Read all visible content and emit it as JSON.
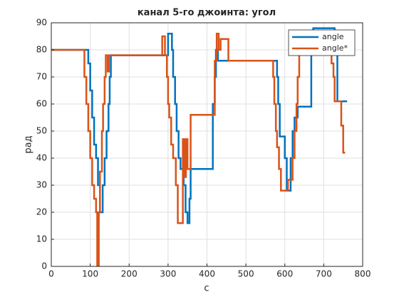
{
  "chart_data": {
    "type": "line",
    "title": "канал 5-го джоинта: угол",
    "xlabel": "c",
    "ylabel": "рад",
    "xlim": [
      0,
      800
    ],
    "xticks": [
      0,
      100,
      200,
      300,
      400,
      500,
      600,
      700,
      800
    ],
    "ylim": [
      0,
      90
    ],
    "yticks": [
      0,
      10,
      20,
      30,
      40,
      50,
      60,
      70,
      80,
      90
    ],
    "grid": true,
    "legend": "top-right",
    "series": [
      {
        "name": "angle",
        "color": "#0072bd",
        "x": [
          0,
          95,
          95,
          100,
          100,
          105,
          105,
          110,
          110,
          115,
          115,
          120,
          120,
          125,
          125,
          132,
          132,
          137,
          137,
          142,
          142,
          147,
          147,
          150,
          150,
          153,
          153,
          300,
          300,
          310,
          310,
          313,
          313,
          318,
          318,
          322,
          322,
          327,
          327,
          332,
          332,
          340,
          340,
          345,
          345,
          350,
          350,
          355,
          355,
          358,
          358,
          415,
          415,
          420,
          420,
          423,
          423,
          428,
          428,
          580,
          580,
          583,
          583,
          587,
          587,
          600,
          600,
          605,
          605,
          615,
          615,
          620,
          620,
          625,
          625,
          633,
          633,
          668,
          668,
          673,
          673,
          728,
          728,
          735,
          735,
          760
        ],
        "values": [
          80,
          80,
          75,
          75,
          65,
          65,
          55,
          55,
          45,
          45,
          40,
          40,
          30,
          30,
          20,
          20,
          30,
          30,
          40,
          40,
          50,
          50,
          60,
          60,
          70,
          70,
          78,
          78,
          86,
          86,
          80,
          80,
          70,
          70,
          60,
          60,
          50,
          50,
          40,
          40,
          36,
          36,
          30,
          30,
          20,
          20,
          16,
          16,
          25,
          25,
          36,
          36,
          60,
          60,
          70,
          70,
          80,
          80,
          76,
          76,
          70,
          70,
          60,
          60,
          48,
          48,
          40,
          40,
          28,
          28,
          40,
          40,
          50,
          50,
          55,
          55,
          59,
          59,
          80,
          80,
          88,
          88,
          80,
          80,
          61,
          61
        ]
      },
      {
        "name": "angle*",
        "color": "#d95319",
        "x": [
          0,
          85,
          85,
          90,
          90,
          95,
          95,
          100,
          100,
          105,
          105,
          110,
          110,
          115,
          115,
          118,
          118,
          122,
          122,
          125,
          125,
          130,
          130,
          133,
          133,
          137,
          137,
          140,
          140,
          145,
          145,
          148,
          148,
          285,
          285,
          292,
          292,
          297,
          297,
          300,
          300,
          303,
          303,
          308,
          308,
          313,
          313,
          320,
          320,
          325,
          325,
          338,
          338,
          342,
          342,
          346,
          346,
          350,
          350,
          358,
          358,
          420,
          420,
          425,
          425,
          430,
          430,
          435,
          435,
          455,
          455,
          570,
          570,
          573,
          573,
          577,
          577,
          580,
          580,
          585,
          585,
          590,
          590,
          608,
          608,
          620,
          620,
          625,
          625,
          630,
          630,
          633,
          633,
          637,
          637,
          720,
          720,
          725,
          725,
          728,
          728,
          745,
          745,
          750,
          750,
          755
        ],
        "values": [
          80,
          80,
          70,
          70,
          60,
          60,
          50,
          50,
          40,
          40,
          30,
          30,
          25,
          25,
          20,
          20,
          0,
          0,
          20,
          20,
          35,
          35,
          50,
          50,
          60,
          60,
          70,
          70,
          78,
          78,
          72,
          72,
          78,
          78,
          85,
          85,
          78,
          78,
          70,
          70,
          60,
          60,
          55,
          55,
          45,
          45,
          40,
          40,
          30,
          30,
          16,
          16,
          47,
          47,
          33,
          33,
          47,
          47,
          36,
          36,
          56,
          56,
          76,
          76,
          86,
          86,
          80,
          80,
          84,
          84,
          76,
          76,
          70,
          70,
          60,
          60,
          50,
          50,
          44,
          44,
          36,
          36,
          28,
          28,
          32,
          32,
          40,
          40,
          50,
          50,
          60,
          60,
          70,
          70,
          80,
          80,
          75,
          75,
          70,
          70,
          61,
          61,
          52,
          52,
          42,
          42
        ]
      }
    ]
  }
}
